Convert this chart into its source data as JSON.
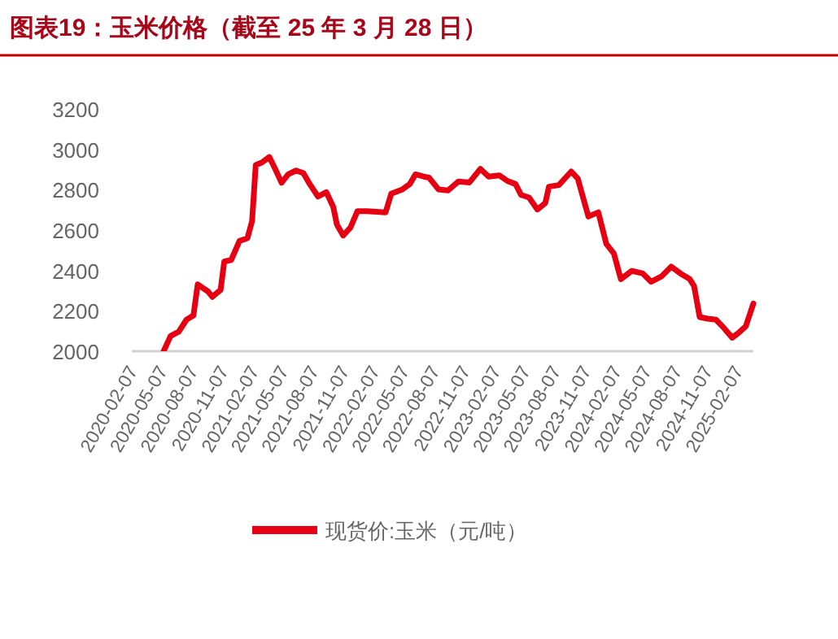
{
  "chart_data": {
    "type": "line",
    "title": "图表19：玉米价格（截至 25 年 3 月 28 日）",
    "ylim": [
      2000,
      3200
    ],
    "yticks": [
      2000,
      2200,
      2400,
      2600,
      2800,
      3000,
      3200
    ],
    "xlim": [
      "2020-02-07",
      "2025-03-28"
    ],
    "xticks": [
      "2020-02-07",
      "2020-05-07",
      "2020-08-07",
      "2020-11-07",
      "2021-02-07",
      "2021-05-07",
      "2021-08-07",
      "2021-11-07",
      "2022-02-07",
      "2022-05-07",
      "2022-08-07",
      "2022-11-07",
      "2023-02-07",
      "2023-05-07",
      "2023-08-07",
      "2023-11-07",
      "2024-02-07",
      "2024-05-07",
      "2024-08-07",
      "2024-11-07",
      "2025-02-07"
    ],
    "grid": false,
    "legend": "bottom",
    "marker": "none",
    "line_style": "solid",
    "series": [
      {
        "name": "现货价:玉米（元/吨）",
        "color": "#e60012",
        "x": [
          "2020-05-13",
          "2020-06-03",
          "2020-06-28",
          "2020-07-21",
          "2020-08-11",
          "2020-08-24",
          "2020-09-24",
          "2020-10-07",
          "2020-11-01",
          "2020-11-12",
          "2020-12-03",
          "2020-12-28",
          "2021-01-21",
          "2021-02-04",
          "2021-02-15",
          "2021-03-06",
          "2021-03-28",
          "2021-04-13",
          "2021-05-04",
          "2021-05-24",
          "2021-06-17",
          "2021-07-09",
          "2021-07-28",
          "2021-08-22",
          "2021-09-16",
          "2021-10-07",
          "2021-10-18",
          "2021-11-06",
          "2021-11-28",
          "2021-12-19",
          "2022-01-16",
          "2022-03-14",
          "2022-03-31",
          "2022-05-02",
          "2022-05-26",
          "2022-06-12",
          "2022-07-07",
          "2022-07-23",
          "2022-08-21",
          "2022-09-18",
          "2022-10-20",
          "2022-11-22",
          "2022-12-25",
          "2023-01-19",
          "2023-02-20",
          "2023-03-16",
          "2023-04-10",
          "2023-04-27",
          "2023-05-21",
          "2023-06-15",
          "2023-07-09",
          "2023-07-20",
          "2023-08-19",
          "2023-09-25",
          "2023-10-15",
          "2023-11-16",
          "2023-12-16",
          "2024-01-09",
          "2024-02-01",
          "2024-02-22",
          "2024-03-26",
          "2024-04-28",
          "2024-05-23",
          "2024-06-24",
          "2024-07-23",
          "2024-08-20",
          "2024-09-17",
          "2024-09-30",
          "2024-10-17",
          "2024-11-10",
          "2024-12-05",
          "2024-12-29",
          "2025-01-23",
          "2025-02-10",
          "2025-03-05",
          "2025-03-28"
        ],
        "values": [
          2000,
          2075,
          2097,
          2156,
          2177,
          2331,
          2296,
          2269,
          2304,
          2444,
          2452,
          2546,
          2560,
          2645,
          2922,
          2935,
          2962,
          2909,
          2834,
          2876,
          2895,
          2882,
          2828,
          2766,
          2788,
          2715,
          2627,
          2573,
          2613,
          2694,
          2694,
          2688,
          2780,
          2800,
          2828,
          2876,
          2865,
          2860,
          2801,
          2796,
          2841,
          2836,
          2903,
          2865,
          2871,
          2844,
          2828,
          2774,
          2761,
          2702,
          2734,
          2815,
          2823,
          2890,
          2855,
          2667,
          2688,
          2532,
          2484,
          2357,
          2398,
          2385,
          2344,
          2371,
          2419,
          2385,
          2357,
          2323,
          2169,
          2161,
          2156,
          2115,
          2067,
          2089,
          2123,
          2236
        ]
      }
    ]
  }
}
